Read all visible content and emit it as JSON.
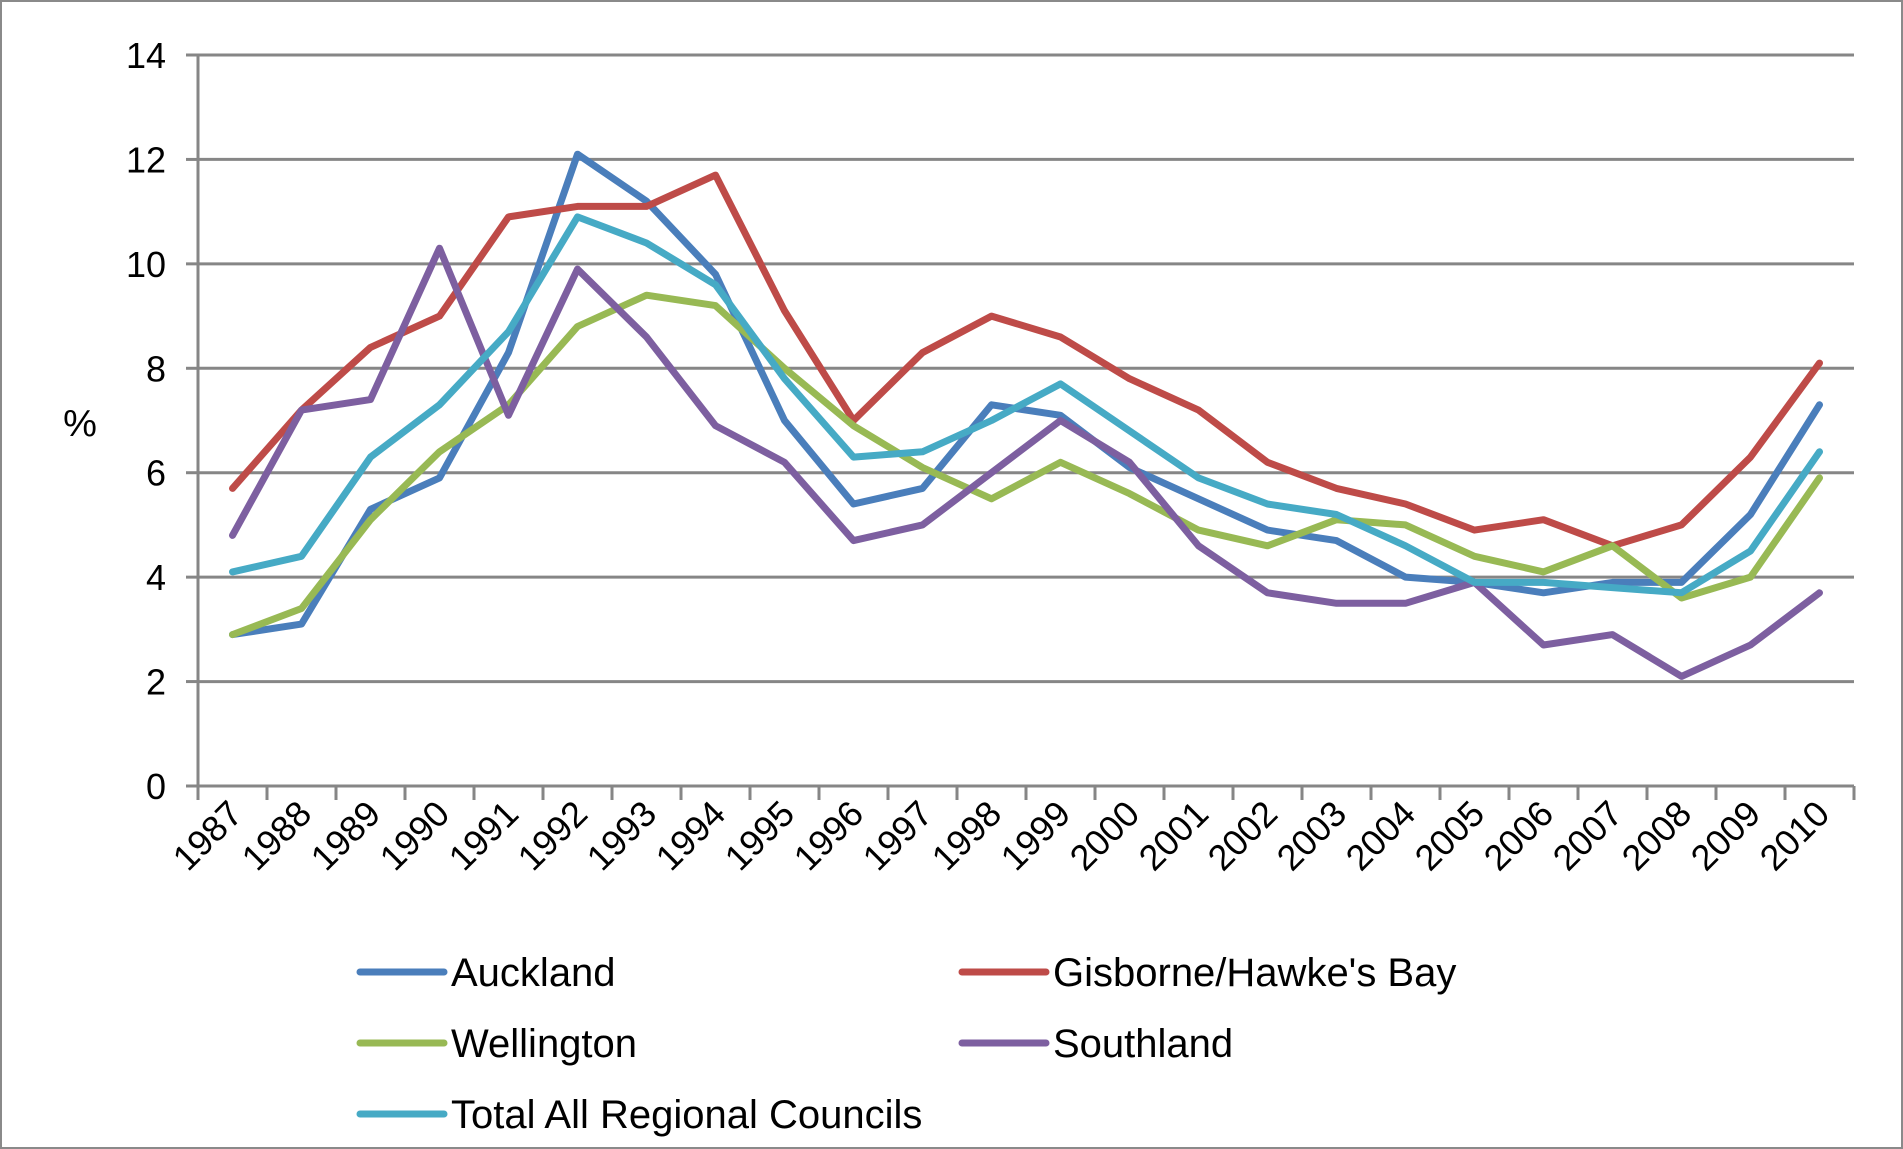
{
  "chart_data": {
    "type": "line",
    "title": "",
    "xlabel": "",
    "ylabel": "%",
    "ylim": [
      0,
      14
    ],
    "yticks": [
      "0",
      "2",
      "4",
      "6",
      "8",
      "10",
      "12",
      "14"
    ],
    "categories": [
      "1987",
      "1988",
      "1989",
      "1990",
      "1991",
      "1992",
      "1993",
      "1994",
      "1995",
      "1996",
      "1997",
      "1998",
      "1999",
      "2000",
      "2001",
      "2002",
      "2003",
      "2004",
      "2005",
      "2006",
      "2007",
      "2008",
      "2009",
      "2010"
    ],
    "grid": "horizontal",
    "legend_position": "bottom",
    "series": [
      {
        "name": "Auckland",
        "color": "#4a7ebb",
        "values": [
          2.9,
          3.1,
          5.3,
          5.9,
          8.3,
          12.1,
          11.2,
          9.8,
          7.0,
          5.4,
          5.7,
          7.3,
          7.1,
          6.1,
          5.5,
          4.9,
          4.7,
          4.0,
          3.9,
          3.7,
          3.9,
          3.9,
          5.2,
          7.3
        ]
      },
      {
        "name": "Gisborne/Hawke's Bay",
        "color": "#be4b48",
        "values": [
          5.7,
          7.2,
          8.4,
          9.0,
          10.9,
          11.1,
          11.1,
          11.7,
          9.1,
          7.0,
          8.3,
          9.0,
          8.6,
          7.8,
          7.2,
          6.2,
          5.7,
          5.4,
          4.9,
          5.1,
          4.6,
          5.0,
          6.3,
          8.1
        ]
      },
      {
        "name": "Wellington",
        "color": "#98b954",
        "values": [
          2.9,
          3.4,
          5.1,
          6.4,
          7.3,
          8.8,
          9.4,
          9.2,
          8.0,
          6.9,
          6.1,
          5.5,
          6.2,
          5.6,
          4.9,
          4.6,
          5.1,
          5.0,
          4.4,
          4.1,
          4.6,
          3.6,
          4.0,
          5.9
        ]
      },
      {
        "name": "Southland",
        "color": "#7d5fa0",
        "values": [
          4.8,
          7.2,
          7.4,
          10.3,
          7.1,
          9.9,
          8.6,
          6.9,
          6.2,
          4.7,
          5.0,
          6.0,
          7.0,
          6.2,
          4.6,
          3.7,
          3.5,
          3.5,
          3.9,
          2.7,
          2.9,
          2.1,
          2.7,
          3.7
        ]
      },
      {
        "name": "Total All Regional Councils",
        "color": "#46aac5",
        "values": [
          4.1,
          4.4,
          6.3,
          7.3,
          8.7,
          10.9,
          10.4,
          9.6,
          7.8,
          6.3,
          6.4,
          7.0,
          7.7,
          6.8,
          5.9,
          5.4,
          5.2,
          4.6,
          3.9,
          3.9,
          3.8,
          3.7,
          4.5,
          6.4
        ]
      }
    ]
  },
  "styles": {
    "grid_color": "#868686",
    "axis_color": "#868686",
    "frame_color": "#8a8a8a"
  }
}
